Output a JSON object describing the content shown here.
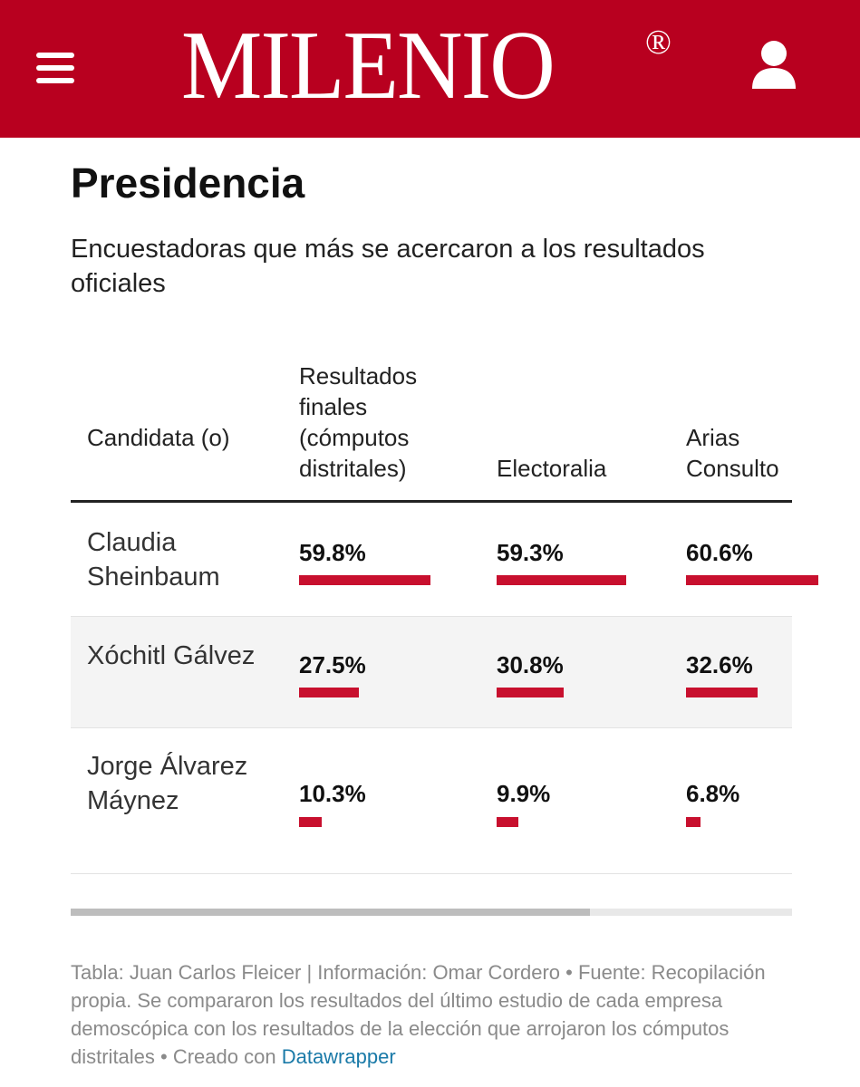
{
  "header": {
    "logo": "MILENIO",
    "registered": "®",
    "menu_icon": "hamburger-menu-icon",
    "user_icon": "user-icon",
    "brand_color": "#b8001f"
  },
  "title": "Presidencia",
  "subtitle": "Encuestadoras que más se acercaron a los resultados oficiales",
  "table": {
    "headers": [
      "Candidata (o)",
      "Resultados finales (cómputos distritales)",
      "Electoralia",
      "Arias Consulto"
    ],
    "rows": [
      {
        "name": "Claudia Sheinbaum",
        "values": [
          "59.8%",
          "59.3%",
          "60.6%"
        ],
        "numbers": [
          59.8,
          59.3,
          60.6
        ]
      },
      {
        "name": "Xóchitl Gálvez",
        "values": [
          "27.5%",
          "30.8%",
          "32.6%"
        ],
        "numbers": [
          27.5,
          30.8,
          32.6
        ]
      },
      {
        "name": "Jorge Álvarez Máynez",
        "values": [
          "10.3%",
          "9.9%",
          "6.8%"
        ],
        "numbers": [
          10.3,
          9.9,
          6.8
        ]
      }
    ],
    "bar_color": "#c8102e",
    "scroll_visible_fraction": 0.72
  },
  "footer": {
    "text": "Tabla: Juan Carlos Fleicer | Información: Omar Cordero • Fuente: Recopilación propia. Se compararon los resultados del último estudio de cada empresa demoscópica con los resultados de la elección que arrojaron los cómputos distritales • Creado con ",
    "link": "Datawrapper"
  }
}
